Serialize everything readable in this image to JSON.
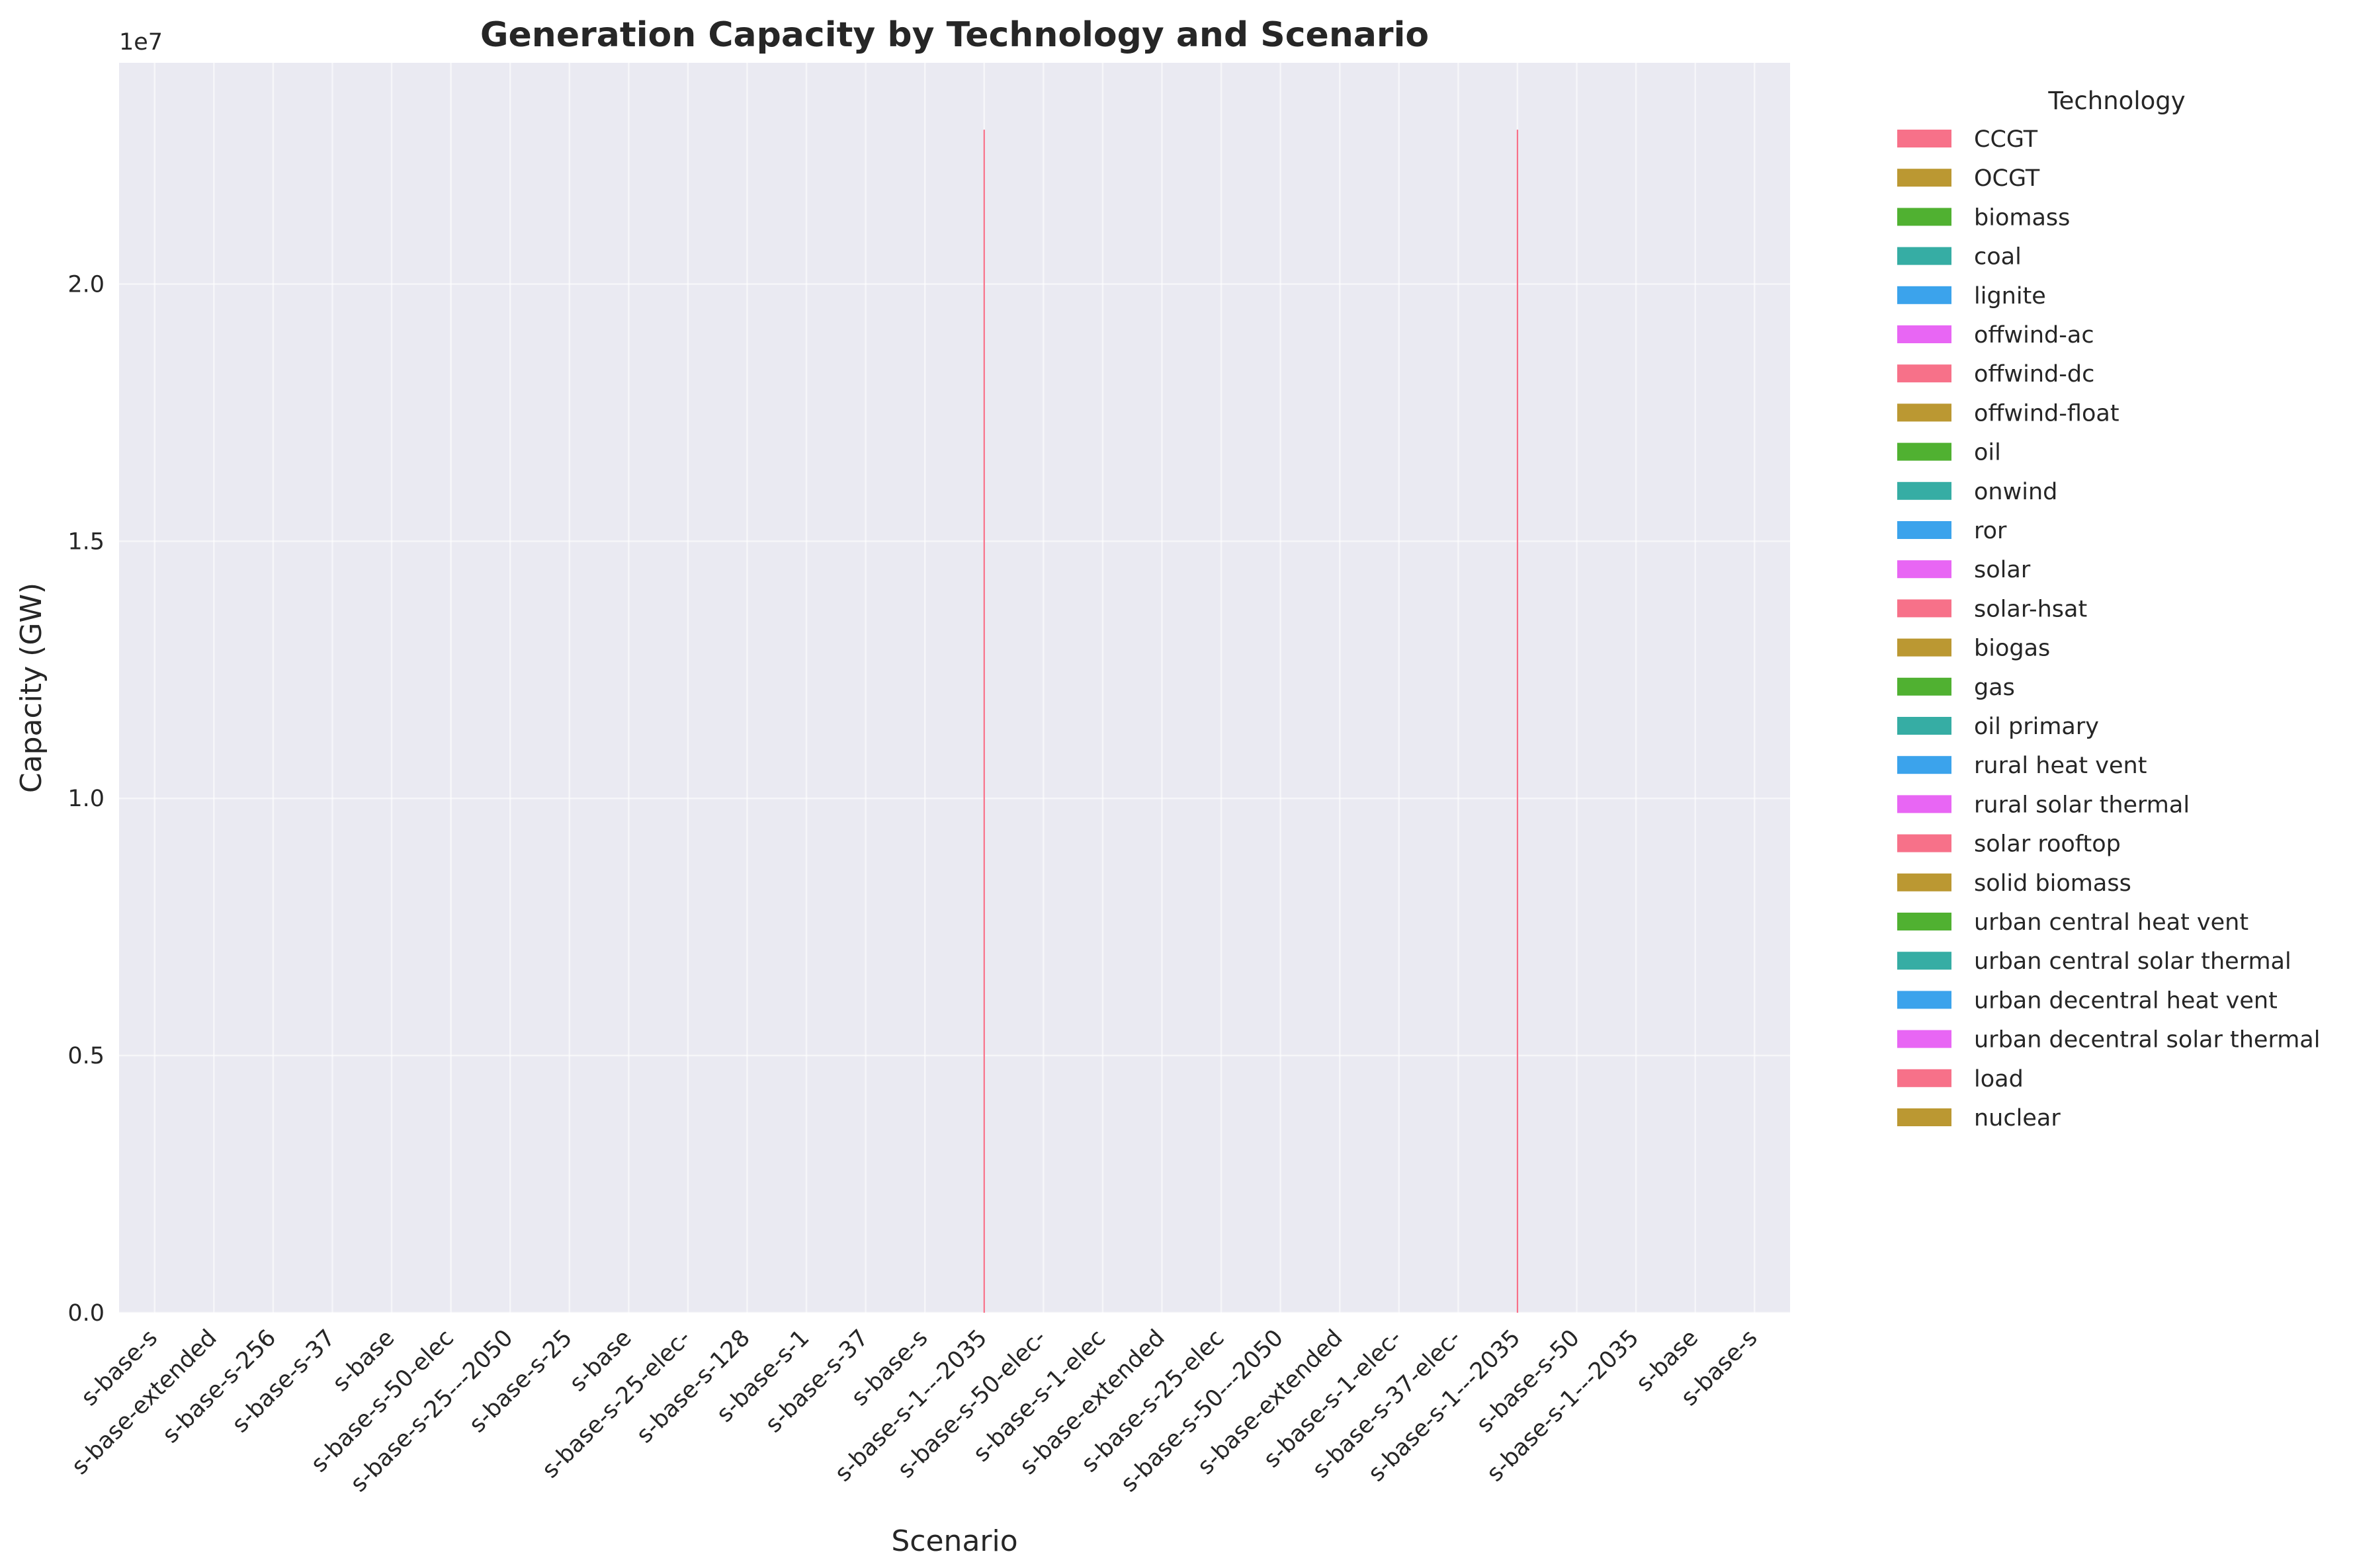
{
  "chart_data": {
    "type": "bar",
    "stacked": true,
    "title": "Generation Capacity by Technology and Scenario",
    "xlabel": "Scenario",
    "ylabel": "Capacity (GW)",
    "y_offset_text": "1e7",
    "ylim": [
      0,
      24300000
    ],
    "yticks": [
      0,
      5000000,
      10000000,
      15000000,
      20000000
    ],
    "ytick_labels": [
      "0.0",
      "0.5",
      "1.0",
      "1.5",
      "2.0"
    ],
    "grid": true,
    "legend_title": "Technology",
    "legend_placement": "outside-right",
    "categories": [
      "s-base-s",
      "s-base-extended",
      "s-base-s-256",
      "s-base-s-37",
      "s-base",
      "s-base-s-50-elec",
      "s-base-s-25---2050",
      "s-base-s-25",
      "s-base",
      "s-base-s-25-elec-",
      "s-base-s-128",
      "s-base-s-1",
      "s-base-s-37",
      "s-base-s",
      "s-base-s-1---2035",
      "s-base-s-50-elec-",
      "s-base-s-1-elec",
      "s-base-extended",
      "s-base-s-25-elec",
      "s-base-s-50---2050",
      "s-base-extended",
      "s-base-s-1-elec-",
      "s-base-s-37-elec-",
      "s-base-s-1---2035",
      "s-base-s-50",
      "s-base-s-1---2035",
      "s-base",
      "s-base-s"
    ],
    "series": [
      {
        "name": "CCGT",
        "color": "#f77189",
        "values": [
          0,
          0,
          0,
          0,
          0,
          0,
          0,
          0,
          0,
          0,
          0,
          0,
          0,
          0,
          0,
          0,
          0,
          0,
          0,
          0,
          0,
          0,
          0,
          0,
          0,
          0,
          0,
          0
        ]
      },
      {
        "name": "OCGT",
        "color": "#bb9832",
        "values": [
          0,
          0,
          0,
          0,
          0,
          0,
          0,
          0,
          0,
          0,
          0,
          0,
          0,
          0,
          0,
          0,
          0,
          0,
          0,
          0,
          0,
          0,
          0,
          0,
          0,
          0,
          0,
          0
        ]
      },
      {
        "name": "biomass",
        "color": "#50b131",
        "values": [
          0,
          0,
          0,
          0,
          0,
          0,
          0,
          0,
          0,
          0,
          0,
          0,
          0,
          0,
          0,
          0,
          0,
          0,
          0,
          0,
          0,
          0,
          0,
          0,
          0,
          0,
          0,
          0
        ]
      },
      {
        "name": "coal",
        "color": "#36ada4",
        "values": [
          0,
          0,
          0,
          0,
          0,
          0,
          0,
          0,
          0,
          0,
          0,
          0,
          0,
          0,
          0,
          0,
          0,
          0,
          0,
          0,
          0,
          0,
          0,
          0,
          0,
          0,
          0,
          0
        ]
      },
      {
        "name": "lignite",
        "color": "#3ba3ec",
        "values": [
          0,
          0,
          0,
          0,
          0,
          0,
          0,
          0,
          0,
          0,
          0,
          0,
          0,
          0,
          0,
          0,
          0,
          0,
          0,
          0,
          0,
          0,
          0,
          0,
          0,
          0,
          0,
          0
        ]
      },
      {
        "name": "offwind-ac",
        "color": "#e866f4",
        "values": [
          0,
          0,
          0,
          0,
          0,
          0,
          0,
          0,
          0,
          0,
          0,
          0,
          0,
          0,
          0,
          0,
          0,
          0,
          0,
          0,
          0,
          0,
          0,
          0,
          0,
          0,
          0,
          0
        ]
      },
      {
        "name": "offwind-dc",
        "color": "#f77189",
        "values": [
          0,
          0,
          0,
          0,
          0,
          0,
          0,
          0,
          0,
          0,
          0,
          0,
          0,
          0,
          0,
          0,
          0,
          0,
          0,
          0,
          0,
          0,
          0,
          0,
          0,
          0,
          0,
          0
        ]
      },
      {
        "name": "offwind-float",
        "color": "#bb9832",
        "values": [
          0,
          0,
          0,
          0,
          0,
          0,
          0,
          0,
          0,
          0,
          0,
          0,
          0,
          0,
          0,
          0,
          0,
          0,
          0,
          0,
          0,
          0,
          0,
          0,
          0,
          0,
          0,
          0
        ]
      },
      {
        "name": "oil",
        "color": "#50b131",
        "values": [
          0,
          0,
          0,
          0,
          0,
          0,
          0,
          0,
          0,
          0,
          0,
          0,
          0,
          0,
          0,
          0,
          0,
          0,
          0,
          0,
          0,
          0,
          0,
          0,
          0,
          0,
          0,
          0
        ]
      },
      {
        "name": "onwind",
        "color": "#36ada4",
        "values": [
          0,
          0,
          0,
          0,
          0,
          0,
          0,
          0,
          0,
          0,
          0,
          0,
          0,
          0,
          0,
          0,
          0,
          0,
          0,
          0,
          0,
          0,
          0,
          0,
          0,
          0,
          0,
          0
        ]
      },
      {
        "name": "ror",
        "color": "#3ba3ec",
        "values": [
          0,
          0,
          0,
          0,
          0,
          0,
          0,
          0,
          0,
          0,
          0,
          0,
          0,
          0,
          0,
          0,
          0,
          0,
          0,
          0,
          0,
          0,
          0,
          0,
          0,
          0,
          0,
          0
        ]
      },
      {
        "name": "solar",
        "color": "#e866f4",
        "values": [
          0,
          0,
          0,
          0,
          0,
          0,
          0,
          0,
          0,
          0,
          0,
          0,
          0,
          0,
          0,
          0,
          0,
          0,
          0,
          0,
          0,
          0,
          0,
          0,
          0,
          0,
          0,
          0
        ]
      },
      {
        "name": "solar-hsat",
        "color": "#f77189",
        "values": [
          0,
          0,
          0,
          0,
          0,
          0,
          0,
          0,
          0,
          0,
          0,
          0,
          0,
          0,
          0,
          0,
          0,
          0,
          0,
          0,
          0,
          0,
          0,
          0,
          0,
          0,
          0,
          0
        ]
      },
      {
        "name": "biogas",
        "color": "#bb9832",
        "values": [
          0,
          0,
          0,
          0,
          0,
          0,
          0,
          0,
          0,
          0,
          0,
          0,
          0,
          0,
          0,
          0,
          0,
          0,
          0,
          0,
          0,
          0,
          0,
          0,
          0,
          0,
          0,
          0
        ]
      },
      {
        "name": "gas",
        "color": "#50b131",
        "values": [
          0,
          0,
          0,
          0,
          0,
          0,
          0,
          0,
          0,
          0,
          0,
          0,
          0,
          0,
          0,
          0,
          0,
          0,
          0,
          0,
          0,
          0,
          0,
          0,
          0,
          0,
          0,
          0
        ]
      },
      {
        "name": "oil primary",
        "color": "#36ada4",
        "values": [
          0,
          0,
          0,
          0,
          0,
          0,
          0,
          0,
          0,
          0,
          0,
          0,
          0,
          0,
          0,
          0,
          0,
          0,
          0,
          0,
          0,
          0,
          0,
          0,
          0,
          0,
          0,
          0
        ]
      },
      {
        "name": "rural heat vent",
        "color": "#3ba3ec",
        "values": [
          0,
          0,
          0,
          0,
          0,
          0,
          0,
          0,
          0,
          0,
          0,
          0,
          0,
          0,
          0,
          0,
          0,
          0,
          0,
          0,
          0,
          0,
          0,
          0,
          0,
          0,
          0,
          0
        ]
      },
      {
        "name": "rural solar thermal",
        "color": "#e866f4",
        "values": [
          0,
          0,
          0,
          0,
          0,
          0,
          0,
          0,
          0,
          0,
          0,
          0,
          0,
          0,
          0,
          0,
          0,
          0,
          0,
          0,
          0,
          0,
          0,
          0,
          0,
          0,
          0,
          0
        ]
      },
      {
        "name": "solar rooftop",
        "color": "#f77189",
        "values": [
          0,
          0,
          0,
          0,
          0,
          0,
          0,
          0,
          0,
          0,
          0,
          0,
          0,
          0,
          0,
          0,
          0,
          0,
          0,
          0,
          0,
          0,
          0,
          0,
          0,
          0,
          0,
          0
        ]
      },
      {
        "name": "solid biomass",
        "color": "#bb9832",
        "values": [
          0,
          0,
          0,
          0,
          0,
          0,
          0,
          0,
          0,
          0,
          0,
          0,
          0,
          0,
          0,
          0,
          0,
          0,
          0,
          0,
          0,
          0,
          0,
          0,
          0,
          0,
          0,
          0
        ]
      },
      {
        "name": "urban central heat vent",
        "color": "#50b131",
        "values": [
          0,
          0,
          0,
          0,
          0,
          0,
          0,
          0,
          0,
          0,
          0,
          0,
          0,
          0,
          0,
          0,
          0,
          0,
          0,
          0,
          0,
          0,
          0,
          0,
          0,
          0,
          0,
          0
        ]
      },
      {
        "name": "urban central solar thermal",
        "color": "#36ada4",
        "values": [
          0,
          0,
          0,
          0,
          0,
          0,
          0,
          0,
          0,
          0,
          0,
          0,
          0,
          0,
          0,
          0,
          0,
          0,
          0,
          0,
          0,
          0,
          0,
          0,
          0,
          0,
          0,
          0
        ]
      },
      {
        "name": "urban decentral heat vent",
        "color": "#3ba3ec",
        "values": [
          0,
          0,
          0,
          0,
          0,
          0,
          0,
          0,
          0,
          0,
          0,
          0,
          0,
          0,
          0,
          0,
          0,
          0,
          0,
          0,
          0,
          0,
          0,
          0,
          0,
          0,
          0,
          0
        ]
      },
      {
        "name": "urban decentral solar thermal",
        "color": "#e866f4",
        "values": [
          0,
          0,
          0,
          0,
          0,
          0,
          0,
          0,
          0,
          0,
          0,
          0,
          0,
          0,
          0,
          0,
          0,
          0,
          0,
          0,
          0,
          0,
          0,
          0,
          0,
          0,
          0,
          0
        ]
      },
      {
        "name": "load",
        "color": "#f77189",
        "values": [
          0,
          0,
          0,
          0,
          0,
          0,
          0,
          0,
          0,
          0,
          0,
          0,
          0,
          0,
          23000000,
          0,
          0,
          0,
          0,
          0,
          0,
          0,
          0,
          23000000,
          0,
          0,
          0,
          0
        ]
      },
      {
        "name": "nuclear",
        "color": "#bb9832",
        "values": [
          0,
          0,
          0,
          0,
          0,
          0,
          0,
          0,
          0,
          0,
          0,
          0,
          0,
          0,
          0,
          0,
          0,
          0,
          0,
          0,
          0,
          0,
          0,
          0,
          0,
          0,
          0,
          0
        ]
      }
    ]
  }
}
